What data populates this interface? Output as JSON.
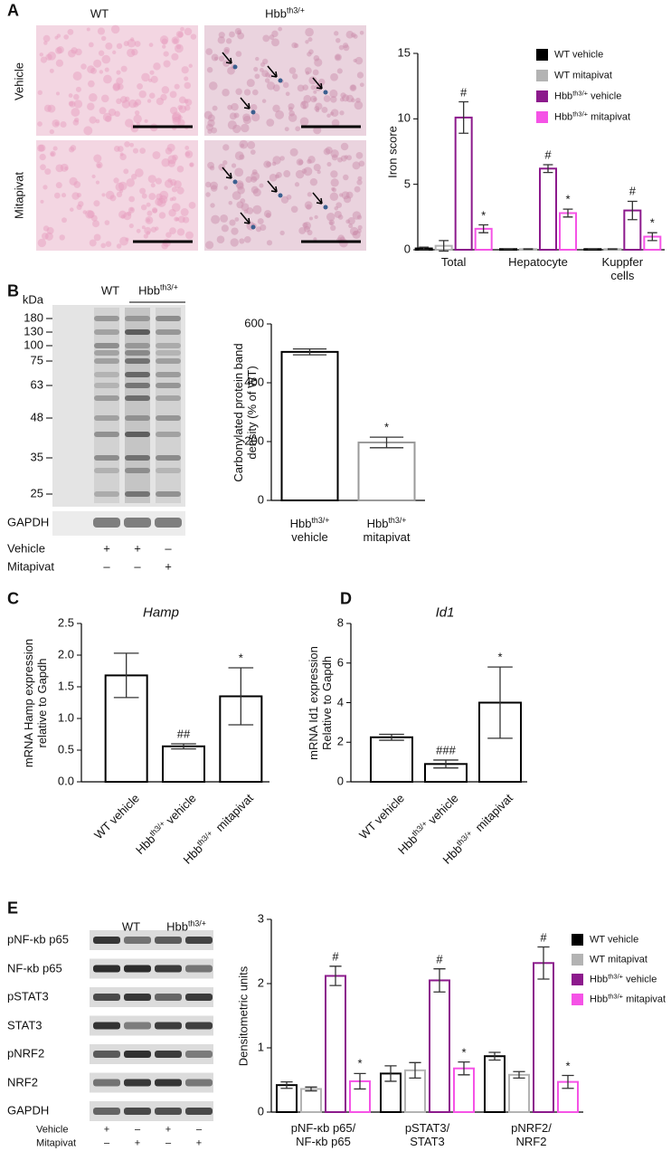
{
  "figure": {
    "panel_labels": [
      "A",
      "B",
      "C",
      "D",
      "E"
    ],
    "A": {
      "columns": [
        "WT",
        [
          "Hbb",
          {
            "sup": "th3/+"
          }
        ]
      ],
      "rows": [
        "Vehicle",
        "Mitapivat"
      ]
    },
    "B": {
      "kda_unit": "kDa",
      "kda": [
        180,
        130,
        100,
        75,
        63,
        48,
        35,
        25
      ],
      "groups": [
        "WT",
        [
          "Hbb",
          {
            "sup": "th3/+"
          }
        ]
      ],
      "loading": "GAPDH",
      "treatments": [
        {
          "name": "Vehicle",
          "marks": [
            "+",
            "+",
            "–"
          ]
        },
        {
          "name": "Mitapivat",
          "marks": [
            "–",
            "–",
            "+"
          ]
        }
      ]
    },
    "E": {
      "groups": [
        "WT",
        [
          "Hbb",
          {
            "sup": "th3/+"
          }
        ]
      ],
      "rows": [
        "pNF-κb p65",
        "NF-κb p65",
        "pSTAT3",
        "STAT3",
        "pNRF2",
        "NRF2",
        "GAPDH"
      ],
      "treatments": [
        {
          "name": "Vehicle",
          "marks": [
            "+",
            "–",
            "+",
            "–"
          ]
        },
        {
          "name": "Mitapivat",
          "marks": [
            "–",
            "+",
            "–",
            "+"
          ]
        }
      ]
    }
  },
  "chart_data": [
    {
      "type": "bar",
      "ylabel": "Iron score",
      "categories": [
        "Total",
        "Hepatocyte",
        "Kuppfer\ncells"
      ],
      "ylim": [
        0,
        15
      ],
      "yticks": [
        0,
        5,
        10,
        15
      ],
      "series": [
        {
          "name": "WT vehicle",
          "color": "#000000",
          "values": [
            0.1,
            0.05,
            0.05
          ],
          "errors": [
            0.1,
            0.02,
            0.02
          ]
        },
        {
          "name": "WT mitapivat",
          "color": "#b3b3b3",
          "values": [
            0.3,
            0.05,
            0.05
          ],
          "errors": [
            0.4,
            0.02,
            0.02
          ]
        },
        {
          "name": [
            "Hbb",
            {
              "sup": "th3/+"
            },
            " vehicle"
          ],
          "color": "#8c1a8c",
          "values": [
            10.1,
            6.2,
            3.0
          ],
          "errors": [
            1.2,
            0.3,
            0.7
          ],
          "annotations": [
            "#",
            "#",
            "#"
          ]
        },
        {
          "name": [
            "Hbb",
            {
              "sup": "th3/+"
            },
            " mitapivat"
          ],
          "color": "#f553e6",
          "values": [
            1.6,
            2.8,
            1.0
          ],
          "errors": [
            0.3,
            0.3,
            0.3
          ],
          "annotations": [
            "*",
            "*",
            "*"
          ]
        }
      ]
    },
    {
      "type": "bar",
      "ylabel": "Carbonylated protein band\ndensity (% of WT)",
      "categories": [
        [
          "Hbb",
          {
            "sup": "th3/+"
          },
          "\nvehicle"
        ],
        [
          "Hbb",
          {
            "sup": "th3/+"
          },
          "\nmitapivat"
        ]
      ],
      "values": [
        505,
        197
      ],
      "errors": [
        10,
        18
      ],
      "annotations": [
        null,
        "*"
      ],
      "colors": [
        "#000000",
        "#9a9a9a"
      ],
      "ylim": [
        0,
        600
      ],
      "yticks": [
        0,
        200,
        400,
        600
      ]
    },
    {
      "type": "bar",
      "title": "Hamp",
      "ylabel": "mRNA Hamp expression\nrelative to Gapdh",
      "categories": [
        "WT vehicle",
        [
          "Hbb",
          {
            "sup": "th3/+"
          },
          " vehicle"
        ],
        [
          "Hbb",
          {
            "sup": "th3/+"
          },
          "  mitapivat"
        ]
      ],
      "values": [
        1.68,
        0.56,
        1.35
      ],
      "errors": [
        0.35,
        0.04,
        0.45
      ],
      "annotations": [
        null,
        "##",
        "*"
      ],
      "colors": [
        "#000000",
        "#000000",
        "#000000"
      ],
      "ylim": [
        0,
        2.5
      ],
      "yticks": [
        {
          "value": 0,
          "label": "0.0"
        },
        0.5,
        {
          "value": 1,
          "label": "1.0"
        },
        1.5,
        {
          "value": 2,
          "label": "2.0"
        },
        2.5
      ]
    },
    {
      "type": "bar",
      "title": "Id1",
      "ylabel": "mRNA Id1 expression\nRelative to Gapdh",
      "categories": [
        "WT vehicle",
        [
          "Hbb",
          {
            "sup": "th3/+"
          },
          " vehicle"
        ],
        [
          "Hbb",
          {
            "sup": "th3/+"
          },
          "  mitapivat"
        ]
      ],
      "values": [
        2.25,
        0.9,
        4.0
      ],
      "errors": [
        0.15,
        0.2,
        1.8
      ],
      "annotations": [
        null,
        "###",
        "*"
      ],
      "colors": [
        "#000000",
        "#000000",
        "#000000"
      ],
      "ylim": [
        0,
        8
      ],
      "yticks": [
        0,
        2,
        4,
        6,
        8
      ]
    },
    {
      "type": "bar",
      "ylabel": "Densitometric units",
      "categories": [
        "pNF-κb p65/\nNF-κb p65",
        "pSTAT3/\nSTAT3",
        "pNRF2/\nNRF2"
      ],
      "ylim": [
        0,
        3
      ],
      "yticks": [
        0,
        1,
        2,
        3
      ],
      "series": [
        {
          "name": "WT vehicle",
          "color": "#000000",
          "values": [
            0.42,
            0.6,
            0.87
          ],
          "errors": [
            0.05,
            0.12,
            0.06
          ]
        },
        {
          "name": "WT mitapivat",
          "color": "#b3b3b3",
          "values": [
            0.36,
            0.65,
            0.58
          ],
          "errors": [
            0.03,
            0.12,
            0.05
          ]
        },
        {
          "name": [
            "Hbb",
            {
              "sup": "th3/+"
            },
            " vehicle"
          ],
          "color": "#8c1a8c",
          "values": [
            2.12,
            2.05,
            2.32
          ],
          "errors": [
            0.15,
            0.18,
            0.25
          ],
          "annotations": [
            "#",
            "#",
            "#"
          ]
        },
        {
          "name": [
            "Hbb",
            {
              "sup": "th3/+"
            },
            " mitapivat"
          ],
          "color": "#f553e6",
          "values": [
            0.48,
            0.68,
            0.47
          ],
          "errors": [
            0.12,
            0.1,
            0.1
          ],
          "annotations": [
            "*",
            "*",
            "*"
          ]
        }
      ]
    }
  ]
}
